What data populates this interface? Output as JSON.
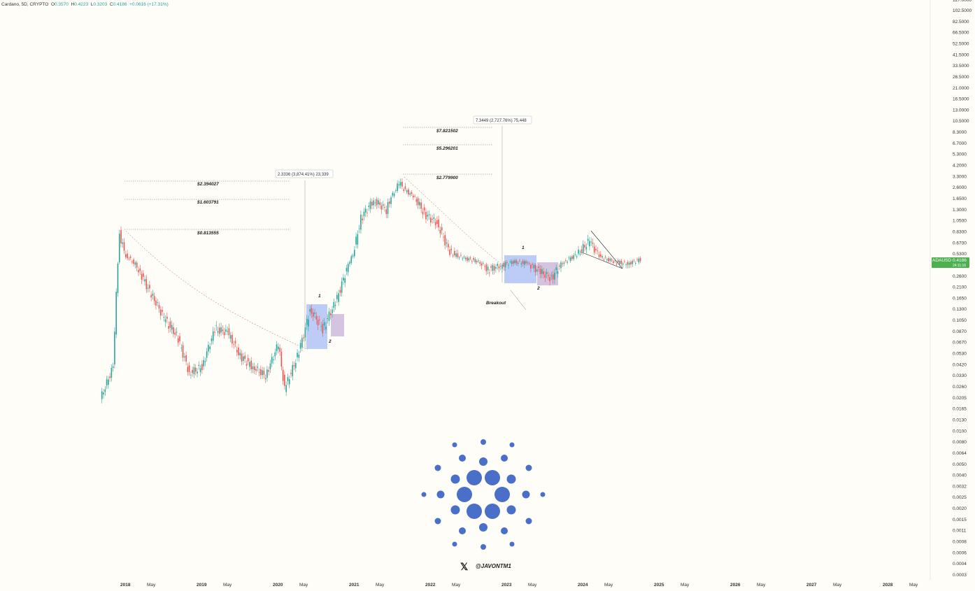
{
  "header": {
    "symbol": "Cardano, 5D, CRYPTO",
    "open_label": "O",
    "open": "0.3570",
    "high_label": "H",
    "high": "0.4223",
    "low_label": "L",
    "low": "0.3203",
    "close_label": "C",
    "close": "0.4186",
    "change": "+0.0616 (+17.31%)"
  },
  "price_axis": {
    "top_partial": "127.0000",
    "ticks": [
      "102.5000",
      "82.5000",
      "66.5000",
      "52.5000",
      "41.5000",
      "33.5000",
      "26.5000",
      "21.0000",
      "16.5000",
      "13.0000",
      "10.5000",
      "8.3000",
      "6.7000",
      "5.3000",
      "4.2000",
      "3.3000",
      "2.6000",
      "1.6500",
      "1.3000",
      "1.0500",
      "0.8300",
      "0.6700",
      "0.5300",
      "0.3300",
      "0.2600",
      "0.2100",
      "0.1650",
      "0.1300",
      "0.1050",
      "0.0870",
      "0.0670",
      "0.0530",
      "0.0420",
      "0.0330",
      "0.0260",
      "0.0205",
      "0.0165",
      "0.0130",
      "0.0100",
      "0.0080",
      "0.0064",
      "0.0050",
      "0.0040",
      "0.0032",
      "0.0025",
      "0.0020",
      "0.0015",
      "0.0011",
      "0.0008",
      "0.0006",
      "0.0004",
      "0.0003"
    ],
    "current_tag": "ADAUSD",
    "current_price": "0.4186",
    "current_sub": "24:11:16",
    "tag_color": "#4caf50"
  },
  "time_axis": [
    "2018",
    "May",
    "2019",
    "May",
    "2020",
    "May",
    "2021",
    "May",
    "2022",
    "May",
    "2023",
    "May",
    "2024",
    "May",
    "2025",
    "May",
    "2026",
    "May",
    "2027",
    "May",
    "2028",
    "May"
  ],
  "annotations": {
    "targets_2021": [
      "$2.394027",
      "$1.603791",
      "$0.813555"
    ],
    "targets_2025": [
      "$7.821502",
      "$5.296201",
      "$2.779900"
    ],
    "measure_2021": "2.3336 (3,874.41%) 23,339",
    "measure_2025": "7.3449 (2,727.76%) 75,448",
    "label_1": "1",
    "label_2": "2",
    "breakout": "Breakout",
    "handle": "@JAVONTM1",
    "x_logo": "𝕏"
  },
  "colors": {
    "up": "#26a69a",
    "down": "#ef5350",
    "box_blue": "#7b9cf5",
    "box_purple": "#a98cc9",
    "logo": "#4a6fc9"
  },
  "chart_data": {
    "type": "line",
    "title": "",
    "ylabel": "",
    "xlabel": "",
    "y_scale": "log",
    "ylim": [
      0.0003,
      127
    ],
    "grid": false,
    "series": [
      {
        "name": "",
        "x": [
          "2017-10",
          "2017-12",
          "2018-01",
          "2018-02",
          "2018-04",
          "2018-06",
          "2018-08",
          "2018-10",
          "2018-12",
          "2019-02",
          "2019-04",
          "2019-06",
          "2019-08",
          "2019-10",
          "2019-12",
          "2020-02",
          "2020-03",
          "2020-05",
          "2020-07",
          "2020-09",
          "2020-11",
          "2021-01",
          "2021-03",
          "2021-05",
          "2021-07",
          "2021-09",
          "2021-11",
          "2022-01",
          "2022-03",
          "2022-05",
          "2022-07",
          "2022-09",
          "2022-11",
          "2023-01",
          "2023-03",
          "2023-05",
          "2023-07",
          "2023-09",
          "2023-11",
          "2024-01",
          "2024-03",
          "2024-05",
          "2024-07",
          "2024-09",
          "2024-11"
        ],
        "values": [
          0.02,
          0.04,
          0.8,
          0.5,
          0.3,
          0.18,
          0.11,
          0.08,
          0.035,
          0.04,
          0.09,
          0.085,
          0.05,
          0.04,
          0.033,
          0.065,
          0.025,
          0.05,
          0.13,
          0.09,
          0.15,
          0.33,
          1.1,
          1.6,
          1.3,
          2.9,
          1.9,
          1.2,
          1.0,
          0.55,
          0.45,
          0.4,
          0.3,
          0.33,
          0.38,
          0.36,
          0.29,
          0.25,
          0.38,
          0.52,
          0.7,
          0.45,
          0.38,
          0.35,
          0.42
        ]
      }
    ]
  }
}
